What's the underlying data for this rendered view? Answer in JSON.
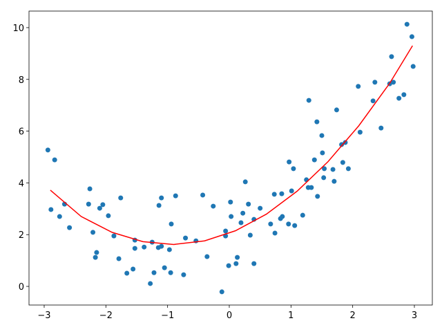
{
  "chart_data": {
    "type": "scatter",
    "xlim": [
      -3.246,
      3.291
    ],
    "ylim": [
      -0.72,
      10.64
    ],
    "xticks": [
      {
        "value": -3,
        "label": "−3"
      },
      {
        "value": -2,
        "label": "−2"
      },
      {
        "value": -1,
        "label": "−1"
      },
      0,
      1,
      2,
      3
    ],
    "yticks": [
      0,
      2,
      4,
      6,
      8,
      10
    ],
    "grid": false,
    "series": [
      {
        "type": "scatter",
        "color": "#1f77b4",
        "x": [
          -2.94,
          -2.83,
          -2.89,
          -2.75,
          -2.67,
          -2.59,
          -2.26,
          -2.28,
          -2.21,
          -2.15,
          -2.17,
          -2.1,
          -2.05,
          -1.96,
          -1.87,
          -1.76,
          -1.79,
          -1.66,
          -1.56,
          -1.53,
          -1.53,
          -1.38,
          -1.28,
          -1.25,
          -1.22,
          -1.15,
          -1.14,
          -1.1,
          -1.1,
          -1.05,
          -0.97,
          -0.95,
          -0.94,
          -0.87,
          -0.74,
          -0.71,
          -0.54,
          -0.43,
          -0.36,
          -0.26,
          -0.12,
          -0.06,
          -0.06,
          -0.01,
          0.03,
          0.02,
          0.11,
          0.13,
          0.19,
          0.22,
          0.26,
          0.31,
          0.34,
          0.4,
          0.4,
          0.5,
          0.67,
          0.73,
          0.74,
          0.83,
          0.86,
          0.85,
          0.96,
          0.97,
          1.01,
          1.04,
          1.06,
          1.19,
          1.25,
          1.28,
          1.29,
          1.33,
          1.38,
          1.42,
          1.43,
          1.5,
          1.51,
          1.54,
          1.53,
          1.68,
          1.7,
          1.74,
          1.82,
          1.84,
          1.88,
          1.93,
          2.09,
          2.12,
          2.33,
          2.36,
          2.46,
          2.6,
          2.66,
          2.63,
          2.75,
          2.83,
          2.88,
          2.96,
          2.98
        ],
        "values": [
          5.27,
          4.89,
          2.97,
          2.7,
          3.18,
          2.27,
          3.77,
          3.18,
          2.09,
          1.31,
          1.12,
          3.02,
          3.16,
          2.73,
          1.95,
          3.42,
          1.07,
          0.51,
          0.67,
          1.79,
          1.47,
          1.52,
          0.11,
          1.71,
          0.53,
          1.5,
          3.13,
          3.42,
          1.55,
          0.72,
          1.42,
          0.53,
          2.41,
          3.5,
          0.45,
          1.87,
          1.76,
          3.53,
          1.15,
          3.1,
          -0.21,
          2.14,
          1.95,
          0.8,
          2.7,
          3.26,
          0.88,
          1.12,
          2.46,
          2.83,
          4.04,
          3.18,
          1.98,
          2.59,
          0.88,
          3.02,
          2.41,
          3.56,
          2.06,
          2.62,
          2.7,
          3.58,
          2.41,
          4.81,
          3.69,
          4.55,
          2.35,
          2.75,
          4.12,
          3.82,
          7.19,
          3.82,
          4.89,
          6.36,
          3.48,
          5.83,
          5.16,
          4.55,
          4.2,
          4.52,
          4.06,
          6.82,
          5.48,
          4.79,
          5.56,
          4.55,
          7.73,
          5.96,
          7.17,
          7.89,
          6.12,
          7.83,
          7.89,
          8.88,
          7.27,
          7.41,
          10.13,
          9.65,
          8.5
        ]
      },
      {
        "type": "line",
        "color": "#ff0000",
        "x": [
          -2.9,
          -2.4,
          -1.9,
          -1.4,
          -0.9,
          -0.4,
          0.1,
          0.6,
          1.1,
          1.6,
          2.1,
          2.6,
          2.97
        ],
        "values": [
          3.72,
          2.7,
          2.09,
          1.73,
          1.62,
          1.76,
          2.15,
          2.79,
          3.68,
          4.82,
          6.21,
          7.85,
          9.3
        ]
      }
    ]
  }
}
